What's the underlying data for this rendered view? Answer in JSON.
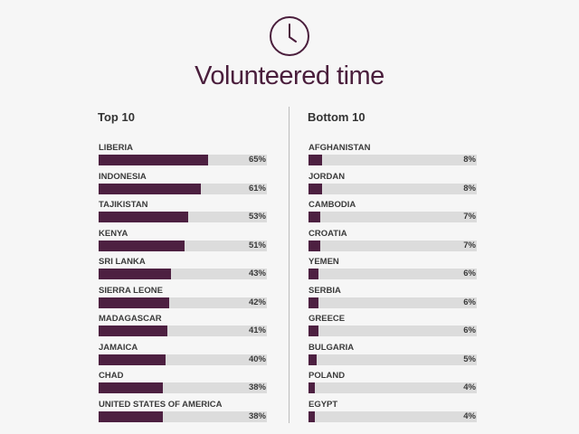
{
  "chart_data": {
    "type": "bar",
    "title": "Volunteered time",
    "panels": [
      {
        "heading": "Top 10",
        "categories": [
          "LIBERIA",
          "INDONESIA",
          "TAJIKISTAN",
          "KENYA",
          "SRI LANKA",
          "SIERRA LEONE",
          "MADAGASCAR",
          "JAMAICA",
          "CHAD",
          "UNITED STATES OF AMERICA"
        ],
        "values": [
          65,
          61,
          53,
          51,
          43,
          42,
          41,
          40,
          38,
          38
        ],
        "labels": [
          "65%",
          "61%",
          "53%",
          "51%",
          "43%",
          "42%",
          "41%",
          "40%",
          "38%",
          "38%"
        ]
      },
      {
        "heading": "Bottom 10",
        "categories": [
          "AFGHANISTAN",
          "JORDAN",
          "CAMBODIA",
          "CROATIA",
          "YEMEN",
          "SERBIA",
          "GREECE",
          "BULGARIA",
          "POLAND",
          "EGYPT"
        ],
        "values": [
          8,
          8,
          7,
          7,
          6,
          6,
          6,
          5,
          4,
          4
        ],
        "labels": [
          "8%",
          "8%",
          "7%",
          "7%",
          "6%",
          "6%",
          "6%",
          "5%",
          "4%",
          "4%"
        ]
      }
    ],
    "xlim": [
      0,
      100
    ],
    "colors": {
      "bar": "#4d2041",
      "track": "#dcdcdc",
      "title": "#4a1e3c"
    }
  },
  "icon": "clock-icon"
}
